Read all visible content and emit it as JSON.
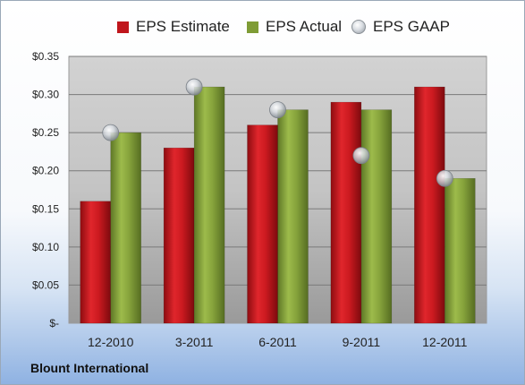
{
  "chart_data": {
    "type": "bar",
    "title": "",
    "xlabel": "",
    "ylabel": "",
    "categories": [
      "12-2010",
      "3-2011",
      "6-2011",
      "9-2011",
      "12-2011"
    ],
    "series": [
      {
        "name": "EPS Estimate",
        "kind": "bar",
        "color": "#c0161c",
        "values": [
          0.16,
          0.23,
          0.26,
          0.29,
          0.31
        ]
      },
      {
        "name": "EPS Actual",
        "kind": "bar",
        "color": "#7f9c35",
        "values": [
          0.25,
          0.31,
          0.28,
          0.28,
          0.19
        ]
      },
      {
        "name": "EPS GAAP",
        "kind": "marker",
        "color": "#c8ccd2",
        "values": [
          0.25,
          0.31,
          0.28,
          0.22,
          0.19
        ]
      }
    ],
    "ylim": [
      0,
      0.35
    ],
    "yticks": [
      0,
      0.05,
      0.1,
      0.15,
      0.2,
      0.25,
      0.3,
      0.35
    ],
    "ytick_labels": [
      "$-",
      "$0.05",
      "$0.10",
      "$0.15",
      "$0.20",
      "$0.25",
      "$0.30",
      "$0.35"
    ],
    "grid": true,
    "legend": "top"
  },
  "footer": {
    "company": "Blount International"
  }
}
